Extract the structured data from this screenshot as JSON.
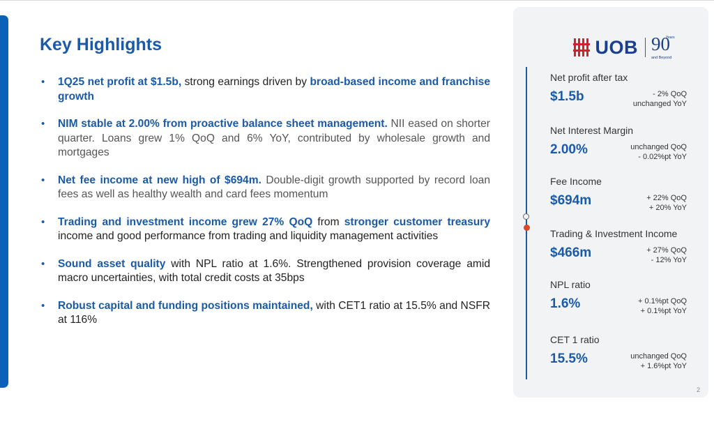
{
  "page": {
    "title": "Key Highlights",
    "page_number": "2"
  },
  "bullets": [
    {
      "runs": [
        {
          "text": "1Q25 net profit at $1.5b,",
          "style": "hl"
        },
        {
          "text": " strong earnings driven by ",
          "style": "normal"
        },
        {
          "text": "broad-based income and franchise growth",
          "style": "hl"
        }
      ]
    },
    {
      "runs": [
        {
          "text": "NIM stable at 2.00% from proactive balance sheet management.",
          "style": "hl"
        },
        {
          "text": " NII eased on shorter quarter. Loans grew 1% QoQ and 6% YoY, contributed by wholesale growth and mortgages",
          "style": "muted"
        }
      ]
    },
    {
      "runs": [
        {
          "text": "Net fee income at new high of $694m.",
          "style": "hl"
        },
        {
          "text": " Double-digit growth supported by record loan fees as well as healthy wealth and card fees momentum",
          "style": "muted"
        }
      ]
    },
    {
      "runs": [
        {
          "text": "Trading and investment income grew 27% QoQ",
          "style": "hl"
        },
        {
          "text": " from ",
          "style": "normal"
        },
        {
          "text": "stronger customer treasury",
          "style": "hl"
        },
        {
          "text": " income and good performance from trading and liquidity management activities",
          "style": "normal"
        }
      ]
    },
    {
      "runs": [
        {
          "text": "Sound asset quality",
          "style": "hl"
        },
        {
          "text": " with NPL ratio at 1.6%. Strengthened provision coverage amid macro uncertainties, with total credit costs at 35bps",
          "style": "normal"
        }
      ]
    },
    {
      "runs": [
        {
          "text": "Robust capital and funding positions maintained,",
          "style": "hl"
        },
        {
          "text": " with CET1 ratio at 15.5% and NSFR at 116%",
          "style": "normal"
        }
      ]
    }
  ],
  "logo": {
    "brand": "UOB",
    "anniversary_number": "90",
    "anniversary_years": "Years",
    "anniversary_tagline": "and Beyond"
  },
  "metrics": [
    {
      "label": "Net profit after tax",
      "value": "$1.5b",
      "change_1": "- 2% QoQ",
      "change_2": "unchanged YoY"
    },
    {
      "label": "Net Interest Margin",
      "value": "2.00%",
      "change_1": "unchanged QoQ",
      "change_2": "- 0.02%pt YoY"
    },
    {
      "label": "Fee Income",
      "value": "$694m",
      "change_1": "+ 22% QoQ",
      "change_2": "+ 20% YoY"
    },
    {
      "label": "Trading & Investment Income",
      "value": "$466m",
      "change_1": "+ 27% QoQ",
      "change_2": "- 12% YoY"
    },
    {
      "label": "NPL ratio",
      "value": "1.6%",
      "change_1": "+ 0.1%pt QoQ",
      "change_2": "+ 0.1%pt YoY"
    },
    {
      "label": "CET 1 ratio",
      "value": "15.5%",
      "change_1": "unchanged QoQ",
      "change_2": "+ 1.6%pt YoY"
    }
  ],
  "colors": {
    "accent_blue": "#1a5aa8",
    "left_bar": "#0a62b8",
    "panel_bg": "#f2f3f5",
    "timeline_dot": "#d64a2e"
  }
}
